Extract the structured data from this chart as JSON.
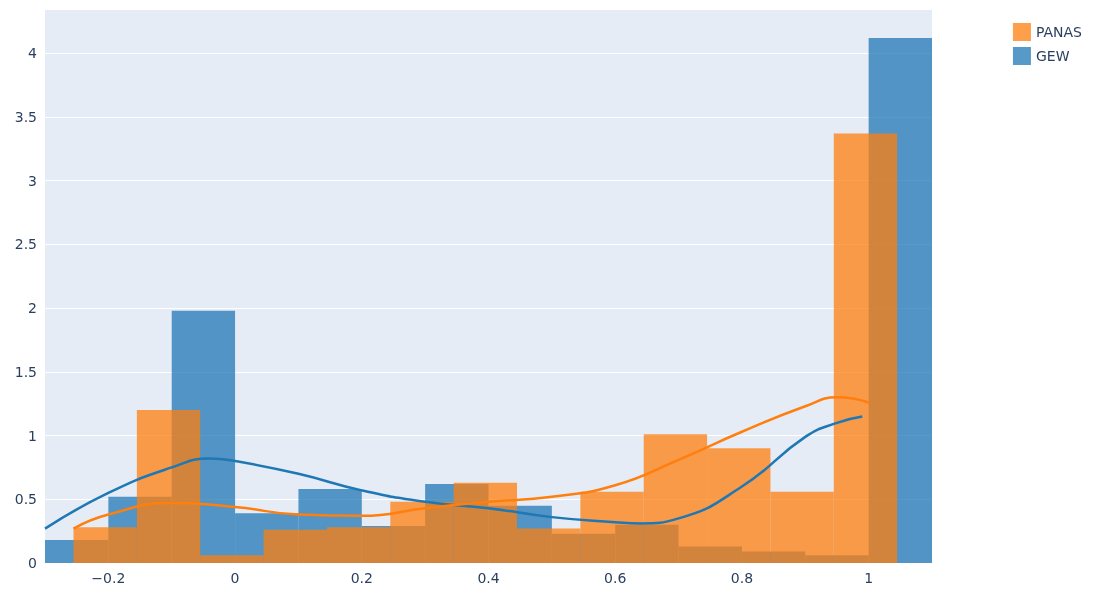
{
  "chart_data": {
    "type": "histogram",
    "series": [
      {
        "name": "PANAS",
        "color": "#ff7f0e",
        "bins": [
          -0.255,
          -0.155,
          -0.055,
          0.045,
          0.145,
          0.245,
          0.345,
          0.445,
          0.545,
          0.645,
          0.745,
          0.845,
          0.945,
          1.045
        ],
        "values": [
          0.28,
          1.2,
          0.06,
          0.26,
          0.28,
          0.48,
          0.63,
          0.27,
          0.56,
          1.01,
          0.9,
          0.56,
          3.37
        ]
      },
      {
        "name": "GEW",
        "color": "#1f77b4",
        "bins": [
          -0.3,
          -0.2,
          -0.1,
          0,
          0.1,
          0.2,
          0.3,
          0.4,
          0.5,
          0.6,
          0.7,
          0.8,
          0.9,
          1.0,
          1.1
        ],
        "values": [
          0.18,
          0.52,
          1.98,
          0.39,
          0.58,
          0.29,
          0.62,
          0.45,
          0.23,
          0.3,
          0.13,
          0.09,
          0.06,
          4.12
        ]
      },
      {
        "type": "line",
        "color": "#ff7f0e",
        "x": [
          -0.255,
          -0.2,
          -0.1,
          0,
          0.1,
          0.2,
          0.3,
          0.4,
          0.5,
          0.6,
          0.7,
          0.8,
          0.9,
          0.95,
          1.0
        ],
        "values": [
          0.27,
          0.38,
          0.47,
          0.44,
          0.38,
          0.37,
          0.43,
          0.48,
          0.52,
          0.61,
          0.81,
          1.03,
          1.23,
          1.3,
          1.26
        ]
      },
      {
        "type": "line",
        "color": "#1f77b4",
        "x": [
          -0.3,
          -0.2,
          -0.1,
          -0.04,
          0,
          0.1,
          0.2,
          0.3,
          0.4,
          0.5,
          0.6,
          0.64,
          0.7,
          0.8,
          0.9,
          0.95,
          0.99
        ],
        "values": [
          0.27,
          0.55,
          0.75,
          0.82,
          0.8,
          0.7,
          0.57,
          0.48,
          0.43,
          0.36,
          0.32,
          0.31,
          0.35,
          0.6,
          0.99,
          1.1,
          1.15
        ]
      }
    ],
    "xlim": [
      -0.3,
      1.1
    ],
    "xticks": [
      {
        "value": -0.2,
        "label": "−0.2"
      },
      0,
      0.2,
      0.4,
      0.6,
      0.8,
      1
    ],
    "ylim": [
      0,
      4.34
    ],
    "yticks": [
      0,
      0.5,
      1,
      1.5,
      2,
      2.5,
      3,
      3.5,
      4
    ],
    "grid": "y",
    "legend": "top right"
  }
}
